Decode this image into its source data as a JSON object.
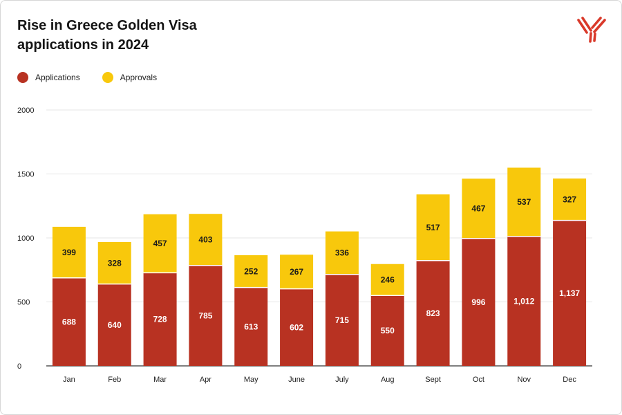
{
  "title_lines": [
    "Rise in Greece Golden Visa",
    "applications in 2024"
  ],
  "colors": {
    "applications": "#B83222",
    "approvals": "#F8C80C",
    "grid": "#e6e6e6",
    "axis": "#333333",
    "logo": "#D9392A"
  },
  "logo_icon": "brand-logo-icon",
  "legend": [
    {
      "label": "Applications",
      "color": "#B83222"
    },
    {
      "label": "Approvals",
      "color": "#F8C80C"
    }
  ],
  "chart_data": {
    "type": "bar",
    "stacked": true,
    "categories": [
      "Jan",
      "Feb",
      "Mar",
      "Apr",
      "May",
      "June",
      "July",
      "Aug",
      "Sept",
      "Oct",
      "Nov",
      "Dec"
    ],
    "series": [
      {
        "name": "Applications",
        "values": [
          688,
          640,
          728,
          785,
          613,
          602,
          715,
          550,
          823,
          996,
          1012,
          1137
        ],
        "labels": [
          "688",
          "640",
          "728",
          "785",
          "613",
          "602",
          "715",
          "550",
          "823",
          "996",
          "1,012",
          "1,137"
        ]
      },
      {
        "name": "Approvals",
        "values": [
          399,
          328,
          457,
          403,
          252,
          267,
          336,
          246,
          517,
          467,
          537,
          327
        ],
        "labels": [
          "399",
          "328",
          "457",
          "403",
          "252",
          "267",
          "336",
          "246",
          "517",
          "467",
          "537",
          "327"
        ]
      }
    ],
    "title": "Rise in Greece Golden Visa applications in 2024",
    "xlabel": "",
    "ylabel": "",
    "ylim": [
      0,
      2000
    ],
    "yticks": [
      0,
      500,
      1000,
      1500,
      2000
    ],
    "grid": true,
    "legend_position": "top-left"
  }
}
